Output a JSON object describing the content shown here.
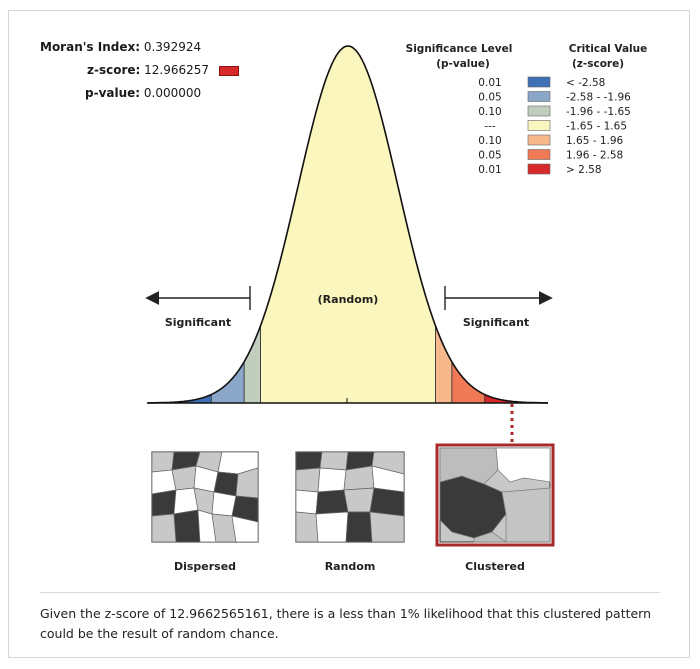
{
  "stats": {
    "morans_label": "Moran's Index:",
    "morans_value": "0.392924",
    "z_label": "z-score:",
    "z_value": "12.966257",
    "p_label": "p-value:",
    "p_value": "0.000000"
  },
  "legend": {
    "sig_header_1": "Significance Level",
    "sig_header_2": "(p-value)",
    "crit_header_1": "Critical Value",
    "crit_header_2": "(z-score)",
    "rows": [
      {
        "p": "0.01",
        "z": "< -2.58",
        "color": "#3f6fb5"
      },
      {
        "p": "0.05",
        "z": "-2.58 - -1.96",
        "color": "#8aa6c8"
      },
      {
        "p": "0.10",
        "z": "-1.96 - -1.65",
        "color": "#c1cdbd"
      },
      {
        "p": "---",
        "z": "-1.65 - 1.65",
        "color": "#fbf6bd"
      },
      {
        "p": "0.10",
        "z": "1.65 - 1.96",
        "color": "#f7b98c"
      },
      {
        "p": "0.05",
        "z": "1.96 - 2.58",
        "color": "#f07a55"
      },
      {
        "p": "0.01",
        "z": "> 2.58",
        "color": "#d7292a"
      }
    ]
  },
  "curve": {
    "center_label": "(Random)",
    "left_label": "Significant",
    "right_label": "Significant"
  },
  "patterns": {
    "dispersed": "Dispersed",
    "random": "Random",
    "clustered": "Clustered"
  },
  "caption": "Given the z-score of 12.9662565161, there is a less than 1% likelihood that this clustered pattern could be the result of random chance."
}
